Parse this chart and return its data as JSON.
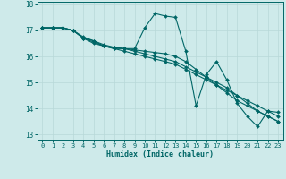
{
  "xlabel": "Humidex (Indice chaleur)",
  "bg_color": "#ceeaea",
  "line_color": "#006666",
  "grid_color": "#b8d8d8",
  "xlim": [
    -0.5,
    23.5
  ],
  "ylim": [
    12.8,
    18.1
  ],
  "yticks": [
    13,
    14,
    15,
    16,
    17,
    18
  ],
  "xticks": [
    0,
    1,
    2,
    3,
    4,
    5,
    6,
    7,
    8,
    9,
    10,
    11,
    12,
    13,
    14,
    15,
    16,
    17,
    18,
    19,
    20,
    21,
    22,
    23
  ],
  "series": [
    [
      17.1,
      17.1,
      17.1,
      17.0,
      16.7,
      16.6,
      16.4,
      16.35,
      16.3,
      16.3,
      17.1,
      17.65,
      17.55,
      17.5,
      16.2,
      14.1,
      15.3,
      15.8,
      15.1,
      14.2,
      13.7,
      13.3,
      13.9,
      13.85
    ],
    [
      17.1,
      17.1,
      17.1,
      17.0,
      16.7,
      16.5,
      16.4,
      16.3,
      16.3,
      16.25,
      16.2,
      16.15,
      16.1,
      16.0,
      15.8,
      15.5,
      15.2,
      14.9,
      14.6,
      14.3,
      14.1,
      13.9,
      13.7,
      13.5
    ],
    [
      17.1,
      17.1,
      17.1,
      17.0,
      16.7,
      16.55,
      16.4,
      16.3,
      16.2,
      16.1,
      16.0,
      15.9,
      15.8,
      15.7,
      15.5,
      15.3,
      15.1,
      14.9,
      14.7,
      14.5,
      14.3,
      14.1,
      13.9,
      13.7
    ],
    [
      17.1,
      17.1,
      17.1,
      17.0,
      16.75,
      16.6,
      16.45,
      16.35,
      16.3,
      16.2,
      16.1,
      16.0,
      15.9,
      15.8,
      15.6,
      15.4,
      15.2,
      15.0,
      14.8,
      14.5,
      14.2,
      13.9,
      13.7,
      13.5
    ]
  ]
}
